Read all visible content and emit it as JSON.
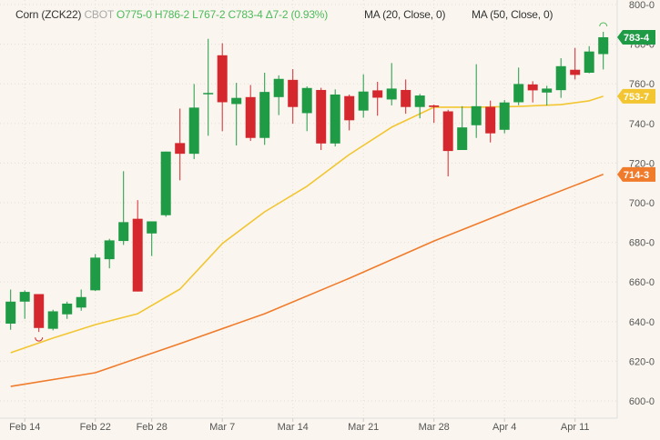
{
  "header": {
    "symbol": "Corn (ZCK22)",
    "exchange": "CBOT",
    "ohlc": "O775-0 H786-2 L767-2 C783-4 Δ7-2 (0.93%)",
    "ma20_label": "MA (20, Close, 0)",
    "ma50_label": "MA (50, Close, 0)"
  },
  "colors": {
    "background": "#faf6ef",
    "up": "#1f9a45",
    "down": "#d4282e",
    "ma20": "#f2c531",
    "ma50": "#f07b2b",
    "ohlc_text": "#4cbb5c"
  },
  "chart_data": {
    "type": "candlestick",
    "title": "Corn (ZCK22)",
    "ylim": [
      595,
      802
    ],
    "grid": true,
    "y_ticks": [
      "600-0",
      "620-0",
      "640-0",
      "660-0",
      "680-0",
      "700-0",
      "720-0",
      "740-0",
      "760-0",
      "780-0",
      "800-0"
    ],
    "y_tick_values": [
      600,
      620,
      640,
      660,
      680,
      700,
      720,
      740,
      760,
      780,
      800
    ],
    "x_ticks": [
      {
        "label": "Feb 14",
        "date": "Feb 14"
      },
      {
        "label": "Feb 22",
        "date": "Feb 22"
      },
      {
        "label": "Feb 28",
        "date": "Feb 28"
      },
      {
        "label": "Mar 7",
        "date": "Mar 7"
      },
      {
        "label": "Mar 14",
        "date": "Mar 14"
      },
      {
        "label": "Mar 21",
        "date": "Mar 21"
      },
      {
        "label": "Mar 28",
        "date": "Mar 28"
      },
      {
        "label": "Apr 4",
        "date": "Apr 4"
      },
      {
        "label": "Apr 11",
        "date": "Apr 11"
      }
    ],
    "candles": [
      {
        "date": "Feb 11",
        "o": 639.0,
        "h": 656.2,
        "l": 635.9,
        "c": 650.1
      },
      {
        "date": "Feb 14",
        "o": 650.1,
        "h": 655.8,
        "l": 641.4,
        "c": 655.0
      },
      {
        "date": "Feb 15",
        "o": 653.9,
        "h": 653.9,
        "l": 634.8,
        "c": 636.8
      },
      {
        "date": "Feb 16",
        "o": 636.4,
        "h": 646.0,
        "l": 635.6,
        "c": 645.2
      },
      {
        "date": "Feb 17",
        "o": 643.7,
        "h": 650.1,
        "l": 641.4,
        "c": 649.1
      },
      {
        "date": "Feb 18",
        "o": 647.1,
        "h": 656.2,
        "l": 645.5,
        "c": 652.4
      },
      {
        "date": "Feb 22",
        "o": 655.8,
        "h": 674.1,
        "l": 655.5,
        "c": 672.3
      },
      {
        "date": "Feb 23",
        "o": 671.5,
        "h": 681.8,
        "l": 666.9,
        "c": 681.0
      },
      {
        "date": "Feb 24",
        "o": 680.7,
        "h": 715.9,
        "l": 678.7,
        "c": 690.2
      },
      {
        "date": "Feb 25",
        "o": 691.9,
        "h": 701.3,
        "l": 655.2,
        "c": 655.2
      },
      {
        "date": "Feb 28",
        "o": 684.5,
        "h": 690.6,
        "l": 673.1,
        "c": 690.6
      },
      {
        "date": "Mar 1",
        "o": 693.7,
        "h": 725.8,
        "l": 692.9,
        "c": 725.8
      },
      {
        "date": "Mar 2",
        "o": 730.1,
        "h": 747.5,
        "l": 711.3,
        "c": 724.7
      },
      {
        "date": "Mar 3",
        "o": 724.7,
        "h": 759.9,
        "l": 722.0,
        "c": 748.0
      },
      {
        "date": "Mar 4",
        "o": 754.8,
        "h": 782.7,
        "l": 733.8,
        "c": 755.4
      },
      {
        "date": "Mar 7",
        "o": 774.4,
        "h": 780.5,
        "l": 736.1,
        "c": 750.7
      },
      {
        "date": "Mar 8",
        "o": 749.8,
        "h": 760.5,
        "l": 728.9,
        "c": 752.9
      },
      {
        "date": "Mar 9",
        "o": 753.3,
        "h": 759.4,
        "l": 731.2,
        "c": 732.7
      },
      {
        "date": "Mar 10",
        "o": 732.7,
        "h": 765.6,
        "l": 729.2,
        "c": 755.9
      },
      {
        "date": "Mar 11",
        "o": 753.3,
        "h": 764.3,
        "l": 744.2,
        "c": 762.5
      },
      {
        "date": "Mar 14",
        "o": 762.0,
        "h": 767.4,
        "l": 739.9,
        "c": 748.3
      },
      {
        "date": "Mar 15",
        "o": 745.2,
        "h": 758.7,
        "l": 736.1,
        "c": 757.9
      },
      {
        "date": "Mar 16",
        "o": 756.9,
        "h": 758.0,
        "l": 726.6,
        "c": 729.9
      },
      {
        "date": "Mar 17",
        "o": 729.9,
        "h": 757.2,
        "l": 728.4,
        "c": 754.6
      },
      {
        "date": "Mar 18",
        "o": 753.8,
        "h": 754.6,
        "l": 736.5,
        "c": 741.6
      },
      {
        "date": "Mar 21",
        "o": 746.5,
        "h": 764.8,
        "l": 742.9,
        "c": 756.1
      },
      {
        "date": "Mar 22",
        "o": 756.7,
        "h": 761.0,
        "l": 743.9,
        "c": 753.0
      },
      {
        "date": "Mar 23",
        "o": 752.1,
        "h": 770.5,
        "l": 749.1,
        "c": 757.6
      },
      {
        "date": "Mar 24",
        "o": 756.9,
        "h": 762.2,
        "l": 744.9,
        "c": 748.3
      },
      {
        "date": "Mar 25",
        "o": 748.3,
        "h": 754.9,
        "l": 742.6,
        "c": 754.1
      },
      {
        "date": "Mar 28",
        "o": 749.1,
        "h": 749.5,
        "l": 740.3,
        "c": 748.3
      },
      {
        "date": "Mar 29",
        "o": 746.1,
        "h": 746.9,
        "l": 713.3,
        "c": 726.1
      },
      {
        "date": "Mar 30",
        "o": 726.6,
        "h": 748.7,
        "l": 726.6,
        "c": 738.0
      },
      {
        "date": "Mar 31",
        "o": 739.1,
        "h": 769.9,
        "l": 732.7,
        "c": 748.7
      },
      {
        "date": "Apr 1",
        "o": 748.4,
        "h": 751.5,
        "l": 730.4,
        "c": 735.0
      },
      {
        "date": "Apr 4",
        "o": 736.8,
        "h": 751.8,
        "l": 735.0,
        "c": 750.6
      },
      {
        "date": "Apr 5",
        "o": 750.7,
        "h": 768.2,
        "l": 749.2,
        "c": 759.9
      },
      {
        "date": "Apr 6",
        "o": 759.7,
        "h": 761.3,
        "l": 750.6,
        "c": 756.7
      },
      {
        "date": "Apr 7",
        "o": 755.6,
        "h": 759.0,
        "l": 749.1,
        "c": 757.6
      },
      {
        "date": "Apr 8",
        "o": 756.8,
        "h": 772.9,
        "l": 752.9,
        "c": 768.9
      },
      {
        "date": "Apr 11",
        "o": 767.1,
        "h": 778.1,
        "l": 762.2,
        "c": 764.5
      },
      {
        "date": "Apr 12",
        "o": 765.6,
        "h": 779.0,
        "l": 765.3,
        "c": 776.3
      },
      {
        "date": "Apr 13",
        "o": 775.0,
        "h": 786.25,
        "l": 767.25,
        "c": 783.5
      }
    ],
    "series": [
      {
        "name": "MA (20, Close, 0)",
        "points": [
          {
            "date": "Feb 11",
            "value": 624.3
          },
          {
            "date": "Feb 16",
            "value": 631.7
          },
          {
            "date": "Feb 22",
            "value": 638.5
          },
          {
            "date": "Feb 25",
            "value": 644.0
          },
          {
            "date": "Mar 2",
            "value": 656.4
          },
          {
            "date": "Mar 7",
            "value": 679.4
          },
          {
            "date": "Mar 10",
            "value": 695.4
          },
          {
            "date": "Mar 15",
            "value": 708.3
          },
          {
            "date": "Mar 18",
            "value": 724.3
          },
          {
            "date": "Mar 23",
            "value": 738.1
          },
          {
            "date": "Mar 28",
            "value": 748.2
          },
          {
            "date": "Mar 31",
            "value": 748.2
          },
          {
            "date": "Apr 5",
            "value": 748.6
          },
          {
            "date": "Apr 8",
            "value": 749.5
          },
          {
            "date": "Apr 12",
            "value": 751.4
          },
          {
            "date": "Apr 13",
            "value": 753.7
          }
        ]
      },
      {
        "name": "MA (50, Close, 0)",
        "points": [
          {
            "date": "Feb 11",
            "value": 607.3
          },
          {
            "date": "Feb 22",
            "value": 614.2
          },
          {
            "date": "Mar 2",
            "value": 628.9
          },
          {
            "date": "Mar 10",
            "value": 644.0
          },
          {
            "date": "Mar 18",
            "value": 661.9
          },
          {
            "date": "Mar 28",
            "value": 680.7
          },
          {
            "date": "Apr 5",
            "value": 697.7
          },
          {
            "date": "Apr 13",
            "value": 714.3
          }
        ]
      }
    ],
    "price_badges": [
      {
        "label": "783-4",
        "value": 783.5,
        "color": "#1f9a45"
      },
      {
        "label": "753-7",
        "value": 753.7,
        "color": "#f2c531"
      },
      {
        "label": "714-3",
        "value": 714.3,
        "color": "#f07b2b"
      }
    ],
    "markers": [
      {
        "type": "high",
        "date": "Apr 13",
        "color": "#4cbb5c"
      },
      {
        "type": "low",
        "date": "Feb 15",
        "color": "#d4282e"
      }
    ]
  }
}
